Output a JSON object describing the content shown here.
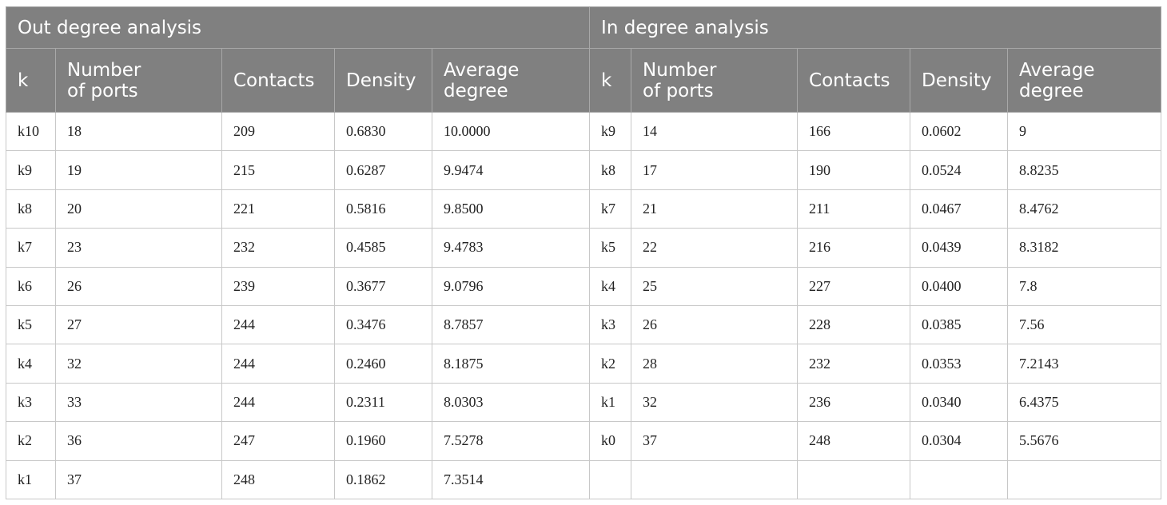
{
  "table": {
    "groups": [
      "Out degree analysis",
      "In degree analysis"
    ],
    "columns": [
      "k",
      "Number of ports",
      "Contacts",
      "Density",
      "Average degree"
    ],
    "out_rows": [
      [
        "k10",
        "18",
        "209",
        "0.6830",
        "10.0000"
      ],
      [
        "k9",
        "19",
        "215",
        "0.6287",
        "9.9474"
      ],
      [
        "k8",
        "20",
        "221",
        "0.5816",
        "9.8500"
      ],
      [
        "k7",
        "23",
        "232",
        "0.4585",
        "9.4783"
      ],
      [
        "k6",
        "26",
        "239",
        "0.3677",
        "9.0796"
      ],
      [
        "k5",
        "27",
        "244",
        "0.3476",
        "8.7857"
      ],
      [
        "k4",
        "32",
        "244",
        "0.2460",
        "8.1875"
      ],
      [
        "k3",
        "33",
        "244",
        "0.2311",
        "8.0303"
      ],
      [
        "k2",
        "36",
        "247",
        "0.1960",
        "7.5278"
      ],
      [
        "k1",
        "37",
        "248",
        "0.1862",
        "7.3514"
      ]
    ],
    "in_rows": [
      [
        "k9",
        "14",
        "166",
        "0.0602",
        "9"
      ],
      [
        "k8",
        "17",
        "190",
        "0.0524",
        "8.8235"
      ],
      [
        "k7",
        "21",
        "211",
        "0.0467",
        "8.4762"
      ],
      [
        "k5",
        "22",
        "216",
        "0.0439",
        "8.3182"
      ],
      [
        "k4",
        "25",
        "227",
        "0.0400",
        "7.8"
      ],
      [
        "k3",
        "26",
        "228",
        "0.0385",
        "7.56"
      ],
      [
        "k2",
        "28",
        "232",
        "0.0353",
        "7.2143"
      ],
      [
        "k1",
        "32",
        "236",
        "0.0340",
        "6.4375"
      ],
      [
        "k0",
        "37",
        "248",
        "0.0304",
        "5.5676"
      ]
    ]
  }
}
